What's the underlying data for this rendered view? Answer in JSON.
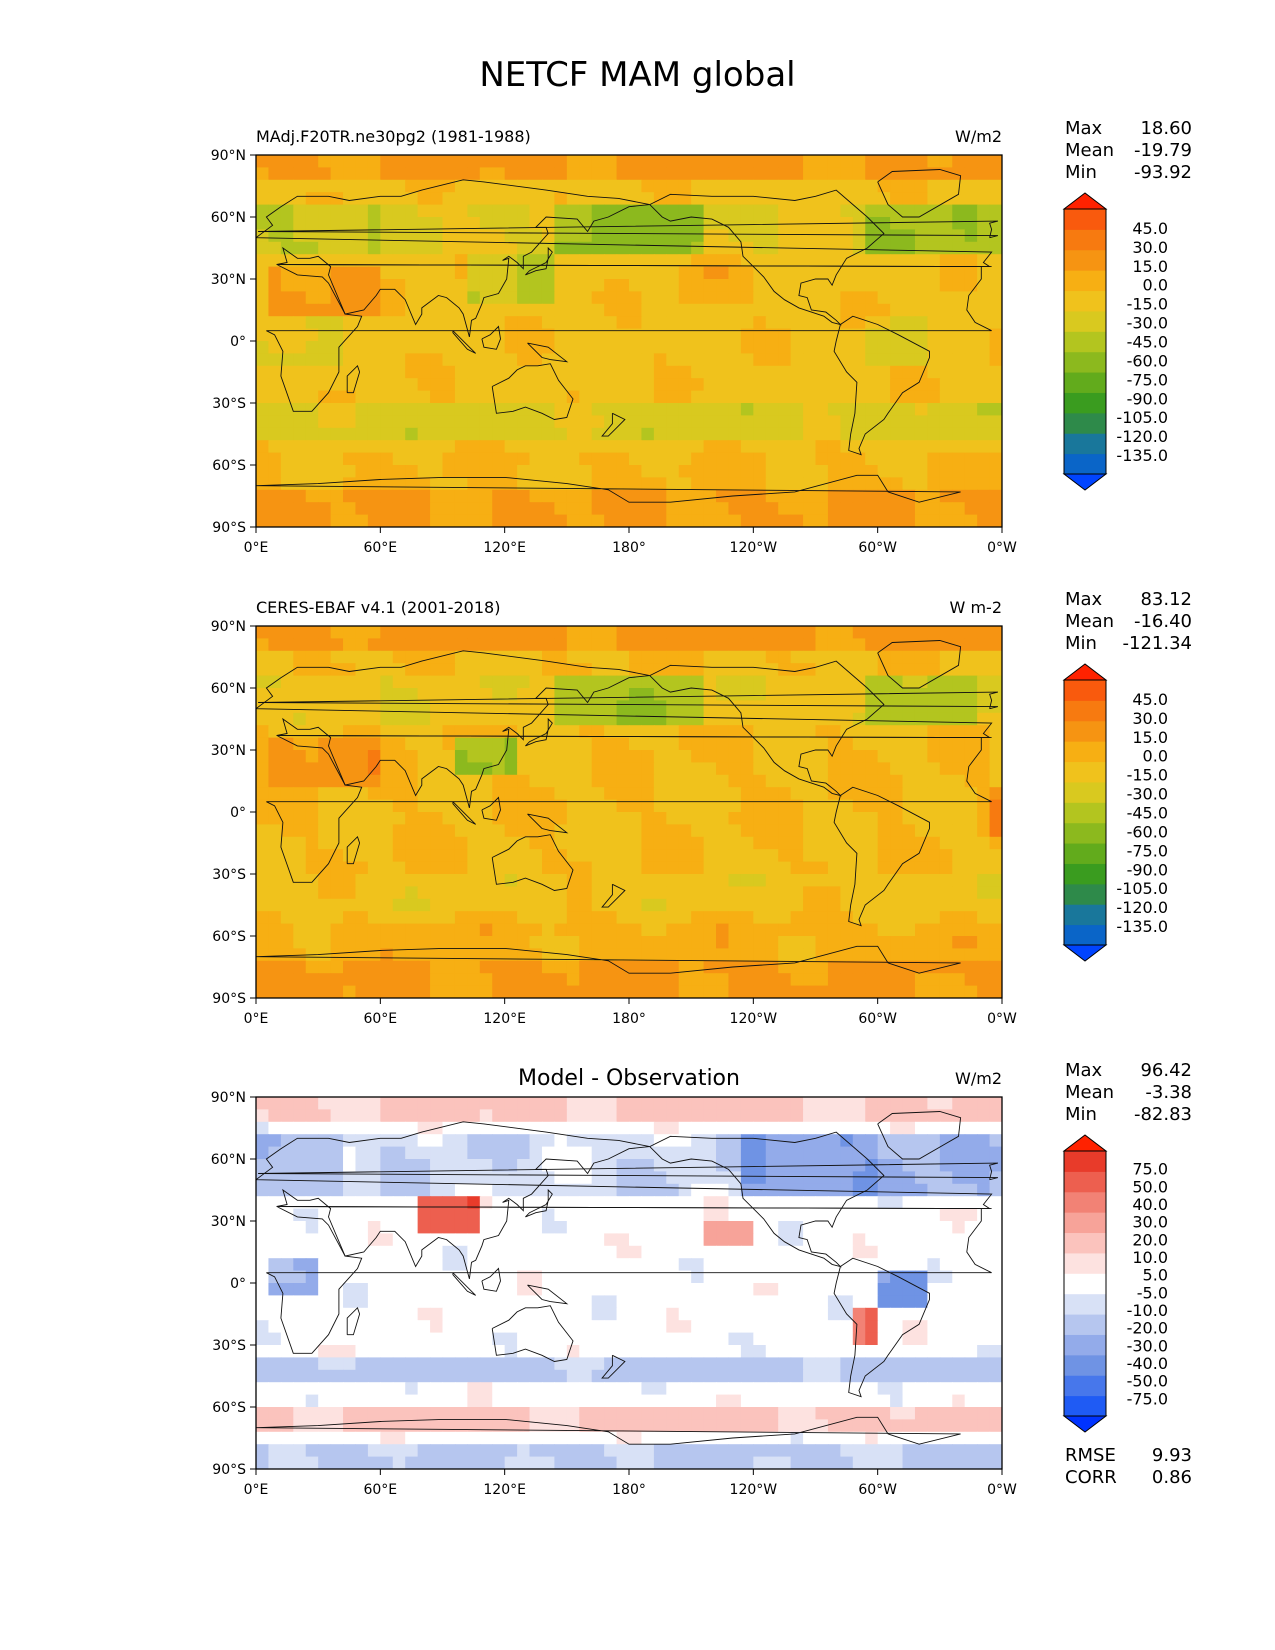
{
  "figure": {
    "title": "NETCF MAM global"
  },
  "colors": {
    "diverging": [
      "#0033ff",
      "#1f5bf4",
      "#4777eb",
      "#6f93e4",
      "#93abea",
      "#b6c6ef",
      "#d8e1f6",
      "#ffffff",
      "#fde2e0",
      "#fbc3bd",
      "#f7a399",
      "#f28275",
      "#ed5f4f",
      "#e83b2a",
      "#ff2200"
    ],
    "sequential": [
      "#0044ff",
      "#0a65c8",
      "#19779b",
      "#2e8a4a",
      "#3a9c1f",
      "#62ab1c",
      "#8cb91e",
      "#b3c51f",
      "#d9c91f",
      "#f0c21c",
      "#f7af13",
      "#f69412",
      "#f77a10",
      "#f95a0d",
      "#ff2200"
    ]
  },
  "panels": [
    {
      "id": "model",
      "left_label": "MAdj.F20TR.ne30pg2 (1981-1988)",
      "center_label": "",
      "units": "W/m2",
      "stats": [
        {
          "label": "Max",
          "value": "18.60"
        },
        {
          "label": "Mean",
          "value": "-19.79"
        },
        {
          "label": "Min",
          "value": "-93.92"
        }
      ],
      "colorbar_ticks": [
        "45.0",
        "30.0",
        "15.0",
        "0.0",
        "-15.0",
        "-30.0",
        "-45.0",
        "-60.0",
        "-75.0",
        "-90.0",
        "-105.0",
        "-120.0",
        "-135.0"
      ],
      "extra_stats": []
    },
    {
      "id": "obs",
      "left_label": "CERES-EBAF v4.1 (2001-2018)",
      "center_label": "",
      "units": "W m-2",
      "stats": [
        {
          "label": "Max",
          "value": "83.12"
        },
        {
          "label": "Mean",
          "value": "-16.40"
        },
        {
          "label": "Min",
          "value": "-121.34"
        }
      ],
      "colorbar_ticks": [
        "45.0",
        "30.0",
        "15.0",
        "0.0",
        "-15.0",
        "-30.0",
        "-45.0",
        "-60.0",
        "-75.0",
        "-90.0",
        "-105.0",
        "-120.0",
        "-135.0"
      ],
      "extra_stats": []
    },
    {
      "id": "diff",
      "left_label": "",
      "center_label": "Model - Observation",
      "units": "W/m2",
      "stats": [
        {
          "label": "Max",
          "value": "96.42"
        },
        {
          "label": "Mean",
          "value": "-3.38"
        },
        {
          "label": "Min",
          "value": "-82.83"
        }
      ],
      "colorbar_ticks": [
        "75.0",
        "50.0",
        "40.0",
        "30.0",
        "20.0",
        "10.0",
        "5.0",
        "-5.0",
        "-10.0",
        "-20.0",
        "-30.0",
        "-40.0",
        "-50.0",
        "-75.0"
      ],
      "extra_stats": [
        {
          "label": "RMSE",
          "value": "9.93"
        },
        {
          "label": "CORR",
          "value": "0.86"
        }
      ]
    }
  ],
  "axes": {
    "lat_ticks": [
      "90°N",
      "60°N",
      "30°N",
      "0°",
      "30°S",
      "60°S",
      "90°S"
    ],
    "lon_ticks": [
      "0°E",
      "60°E",
      "120°E",
      "180°",
      "120°W",
      "60°W",
      "0°W"
    ]
  }
}
